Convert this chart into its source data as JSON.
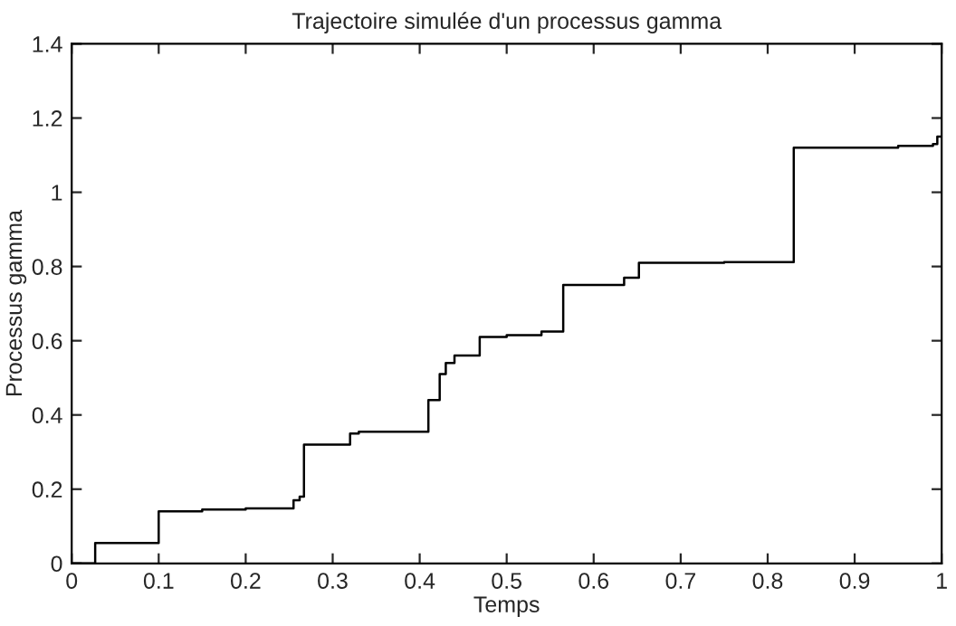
{
  "chart_data": {
    "type": "step",
    "title": "Trajectoire simulée d'un processus gamma",
    "xlabel": "Temps",
    "ylabel": "Processus gamma",
    "x": [
      0,
      0.027,
      0.1,
      0.15,
      0.2,
      0.255,
      0.262,
      0.267,
      0.32,
      0.33,
      0.41,
      0.423,
      0.43,
      0.44,
      0.469,
      0.5,
      0.54,
      0.565,
      0.635,
      0.652,
      0.75,
      0.83,
      0.95,
      0.99,
      0.995,
      1.0
    ],
    "series": [
      {
        "color": "#000000",
        "values": [
          0,
          0.055,
          0.14,
          0.145,
          0.148,
          0.17,
          0.18,
          0.32,
          0.35,
          0.355,
          0.44,
          0.51,
          0.54,
          0.56,
          0.61,
          0.615,
          0.625,
          0.75,
          0.77,
          0.81,
          0.812,
          1.12,
          1.125,
          1.13,
          1.15,
          1.15
        ]
      }
    ],
    "xlim": [
      0,
      1
    ],
    "ylim": [
      0,
      1.4
    ],
    "xticks": [
      0,
      0.1,
      0.2,
      0.3,
      0.4,
      0.5,
      0.6,
      0.7,
      0.8,
      0.9,
      1
    ],
    "yticks": [
      0,
      0.2,
      0.4,
      0.6,
      0.8,
      1,
      1.2,
      1.4
    ],
    "line_style": "solid",
    "grid": false
  }
}
